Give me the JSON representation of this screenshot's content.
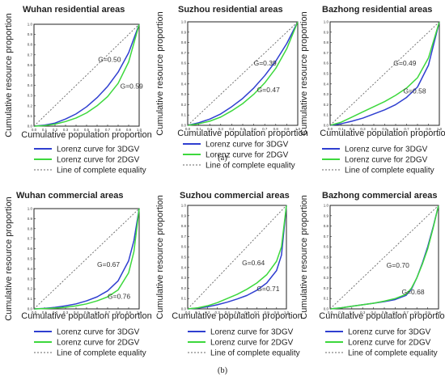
{
  "colors": {
    "threeD": "#2f3fd0",
    "twoD": "#3dd83d",
    "equality": "#666666"
  },
  "part_labels": [
    "(a)",
    "(b)"
  ],
  "chart_data": [
    {
      "type": "line",
      "panel": "a1",
      "title": "Wuhan residential areas",
      "xlabel": "Cumulative population proportion",
      "ylabel": "Cumulative resource proportion",
      "xlim": [
        0,
        1
      ],
      "ylim": [
        0,
        1
      ],
      "ticks": [
        "0.0",
        "0.1",
        "0.2",
        "0.3",
        "0.4",
        "0.5",
        "0.6",
        "0.7",
        "0.8",
        "0.9",
        "1.0"
      ],
      "grid": false,
      "annotations": [
        {
          "text": "G=0.50",
          "x": 0.61,
          "y": 0.63
        },
        {
          "text": "G=0.59",
          "x": 0.82,
          "y": 0.37
        }
      ],
      "series": [
        {
          "name": "Lorenz curve for 3DGV",
          "color_key": "threeD",
          "x": [
            0,
            0.1,
            0.2,
            0.3,
            0.4,
            0.5,
            0.6,
            0.7,
            0.8,
            0.9,
            1.0
          ],
          "y": [
            0,
            0.01,
            0.03,
            0.07,
            0.12,
            0.19,
            0.28,
            0.39,
            0.53,
            0.72,
            1.0
          ]
        },
        {
          "name": "Lorenz curve for 2DGV",
          "color_key": "twoD",
          "x": [
            0,
            0.1,
            0.2,
            0.3,
            0.4,
            0.5,
            0.6,
            0.7,
            0.8,
            0.9,
            1.0
          ],
          "y": [
            0,
            0.005,
            0.02,
            0.045,
            0.08,
            0.13,
            0.2,
            0.29,
            0.42,
            0.63,
            1.0
          ]
        },
        {
          "name": "Line of complete equality",
          "color_key": "equality",
          "dashed": true,
          "x": [
            0,
            1
          ],
          "y": [
            0,
            1
          ]
        }
      ],
      "legend_placement": "bottom"
    },
    {
      "type": "line",
      "panel": "a2",
      "title": "Suzhou residential areas",
      "xlabel": "Cumulative population proportion",
      "ylabel": "Cumulative resource proportion",
      "xlim": [
        0,
        1
      ],
      "ylim": [
        0,
        1
      ],
      "ticks": [
        "0.0",
        "0.1",
        "0.2",
        "0.3",
        "0.4",
        "0.5",
        "0.6",
        "0.7",
        "0.8",
        "0.9",
        "1.0"
      ],
      "grid": false,
      "annotations": [
        {
          "text": "G=0.39",
          "x": 0.6,
          "y": 0.58
        },
        {
          "text": "G=0.47",
          "x": 0.63,
          "y": 0.32
        }
      ],
      "series": [
        {
          "name": "Lorenz curve for 3DGV",
          "color_key": "threeD",
          "x": [
            0,
            0.1,
            0.2,
            0.3,
            0.4,
            0.5,
            0.6,
            0.7,
            0.8,
            0.9,
            1.0
          ],
          "y": [
            0,
            0.025,
            0.06,
            0.11,
            0.18,
            0.26,
            0.36,
            0.48,
            0.62,
            0.79,
            1.0
          ]
        },
        {
          "name": "Lorenz curve for 2DGV",
          "color_key": "twoD",
          "x": [
            0,
            0.1,
            0.2,
            0.3,
            0.4,
            0.5,
            0.6,
            0.7,
            0.8,
            0.9,
            1.0
          ],
          "y": [
            0,
            0.015,
            0.04,
            0.08,
            0.14,
            0.21,
            0.3,
            0.41,
            0.55,
            0.74,
            1.0
          ]
        },
        {
          "name": "Line of complete equality",
          "color_key": "equality",
          "dashed": true,
          "x": [
            0,
            1
          ],
          "y": [
            0,
            1
          ]
        }
      ],
      "legend_placement": "bottom"
    },
    {
      "type": "line",
      "panel": "a3",
      "title": "Bazhong residential areas",
      "xlabel": "Cumulative population proportion",
      "ylabel": "Cumulative resource proportion",
      "xlim": [
        0,
        1
      ],
      "ylim": [
        0,
        1
      ],
      "ticks": [
        "0.0",
        "0.1",
        "0.2",
        "0.3",
        "0.4",
        "0.5",
        "0.6",
        "0.7",
        "0.8",
        "0.9",
        "1.0"
      ],
      "grid": false,
      "annotations": [
        {
          "text": "G=0.49",
          "x": 0.58,
          "y": 0.58
        },
        {
          "text": "G=0.58",
          "x": 0.67,
          "y": 0.31
        }
      ],
      "series": [
        {
          "name": "Lorenz curve for 3DGV",
          "color_key": "threeD",
          "x": [
            0,
            0.1,
            0.2,
            0.3,
            0.4,
            0.5,
            0.6,
            0.7,
            0.8,
            0.9,
            1.0
          ],
          "y": [
            0,
            0.015,
            0.04,
            0.07,
            0.11,
            0.15,
            0.2,
            0.27,
            0.37,
            0.58,
            1.0
          ]
        },
        {
          "name": "Lorenz curve for 2DGV",
          "color_key": "twoD",
          "x": [
            0,
            0.1,
            0.2,
            0.3,
            0.4,
            0.5,
            0.6,
            0.7,
            0.8,
            0.9,
            1.0
          ],
          "y": [
            0,
            0.03,
            0.08,
            0.13,
            0.18,
            0.23,
            0.29,
            0.36,
            0.46,
            0.65,
            1.0
          ]
        },
        {
          "name": "Line of complete equality",
          "color_key": "equality",
          "dashed": true,
          "x": [
            0,
            1
          ],
          "y": [
            0,
            1
          ]
        }
      ],
      "legend_placement": "bottom"
    },
    {
      "type": "line",
      "panel": "b1",
      "title": "Wuhan commercial areas",
      "xlabel": "Cumulative population proportion",
      "ylabel": "Cumulative resource proportion",
      "xlim": [
        0,
        1
      ],
      "ylim": [
        0,
        1
      ],
      "ticks": [
        "0.0",
        "0.1",
        "0.2",
        "0.3",
        "0.4",
        "0.5",
        "0.6",
        "0.7",
        "0.8",
        "0.9",
        "1.0"
      ],
      "grid": false,
      "annotations": [
        {
          "text": "G=0.67",
          "x": 0.6,
          "y": 0.42
        },
        {
          "text": "G=0.76",
          "x": 0.7,
          "y": 0.1
        }
      ],
      "series": [
        {
          "name": "Lorenz curve for 3DGV",
          "color_key": "threeD",
          "x": [
            0,
            0.1,
            0.2,
            0.3,
            0.4,
            0.5,
            0.6,
            0.7,
            0.8,
            0.9,
            0.95,
            1.0
          ],
          "y": [
            0,
            0.005,
            0.015,
            0.03,
            0.05,
            0.08,
            0.12,
            0.18,
            0.28,
            0.48,
            0.68,
            1.0
          ]
        },
        {
          "name": "Lorenz curve for 2DGV",
          "color_key": "twoD",
          "x": [
            0,
            0.1,
            0.2,
            0.3,
            0.4,
            0.5,
            0.6,
            0.7,
            0.8,
            0.9,
            0.95,
            1.0
          ],
          "y": [
            0,
            0.003,
            0.008,
            0.016,
            0.03,
            0.05,
            0.08,
            0.12,
            0.19,
            0.36,
            0.57,
            1.0
          ]
        },
        {
          "name": "Line of complete equality",
          "color_key": "equality",
          "dashed": true,
          "x": [
            0,
            1
          ],
          "y": [
            0,
            1
          ]
        }
      ],
      "legend_placement": "bottom"
    },
    {
      "type": "line",
      "panel": "b2",
      "title": "Suzhou commercial areas",
      "xlabel": "Cumulative population proportion",
      "ylabel": "Cumulative resource proportion",
      "xlim": [
        0,
        1
      ],
      "ylim": [
        0,
        1
      ],
      "ticks": [
        "0.0",
        "0.1",
        "0.2",
        "0.3",
        "0.4",
        "0.5",
        "0.6",
        "0.7",
        "0.8",
        "0.9",
        "1.0"
      ],
      "grid": false,
      "annotations": [
        {
          "text": "G=0.64",
          "x": 0.55,
          "y": 0.42
        },
        {
          "text": "G=0.71",
          "x": 0.7,
          "y": 0.17
        }
      ],
      "series": [
        {
          "name": "Lorenz curve for 3DGV",
          "color_key": "threeD",
          "x": [
            0,
            0.1,
            0.2,
            0.3,
            0.4,
            0.5,
            0.6,
            0.7,
            0.8,
            0.9,
            0.95,
            1.0
          ],
          "y": [
            0,
            0.008,
            0.02,
            0.04,
            0.065,
            0.095,
            0.13,
            0.18,
            0.25,
            0.37,
            0.52,
            1.0
          ]
        },
        {
          "name": "Lorenz curve for 2DGV",
          "color_key": "twoD",
          "x": [
            0,
            0.1,
            0.2,
            0.3,
            0.4,
            0.5,
            0.6,
            0.7,
            0.8,
            0.9,
            0.95,
            1.0
          ],
          "y": [
            0,
            0.01,
            0.03,
            0.06,
            0.1,
            0.14,
            0.19,
            0.25,
            0.33,
            0.46,
            0.6,
            1.0
          ]
        },
        {
          "name": "Line of complete equality",
          "color_key": "equality",
          "dashed": true,
          "x": [
            0,
            1
          ],
          "y": [
            0,
            1
          ]
        }
      ],
      "legend_placement": "bottom"
    },
    {
      "type": "line",
      "panel": "b3",
      "title": "Bazhong commercial areas",
      "xlabel": "Cumulative population proportion",
      "ylabel": "Cumulative resource proportion",
      "xlim": [
        0,
        1
      ],
      "ylim": [
        0,
        1
      ],
      "ticks": [
        "0.0",
        "0.1",
        "0.2",
        "0.3",
        "0.4",
        "0.5",
        "0.6",
        "0.7",
        "0.8",
        "0.9",
        "1.0"
      ],
      "grid": false,
      "annotations": [
        {
          "text": "G=0.70",
          "x": 0.52,
          "y": 0.4
        },
        {
          "text": "G=0.68",
          "x": 0.66,
          "y": 0.14
        }
      ],
      "series": [
        {
          "name": "Lorenz curve for 3DGV",
          "color_key": "threeD",
          "x": [
            0,
            0.1,
            0.2,
            0.3,
            0.4,
            0.5,
            0.6,
            0.7,
            0.75,
            0.8,
            0.85,
            0.9,
            0.95,
            1.0
          ],
          "y": [
            0,
            0.01,
            0.025,
            0.04,
            0.055,
            0.07,
            0.09,
            0.13,
            0.19,
            0.3,
            0.44,
            0.6,
            0.79,
            1.0
          ]
        },
        {
          "name": "Lorenz curve for 2DGV",
          "color_key": "twoD",
          "x": [
            0,
            0.1,
            0.2,
            0.3,
            0.4,
            0.5,
            0.6,
            0.7,
            0.75,
            0.8,
            0.85,
            0.9,
            0.95,
            1.0
          ],
          "y": [
            0,
            0.01,
            0.025,
            0.04,
            0.055,
            0.075,
            0.1,
            0.14,
            0.2,
            0.3,
            0.43,
            0.58,
            0.78,
            1.0
          ]
        },
        {
          "name": "Line of complete equality",
          "color_key": "equality",
          "dashed": true,
          "x": [
            0,
            1
          ],
          "y": [
            0,
            1
          ]
        }
      ],
      "legend_placement": "bottom"
    }
  ]
}
